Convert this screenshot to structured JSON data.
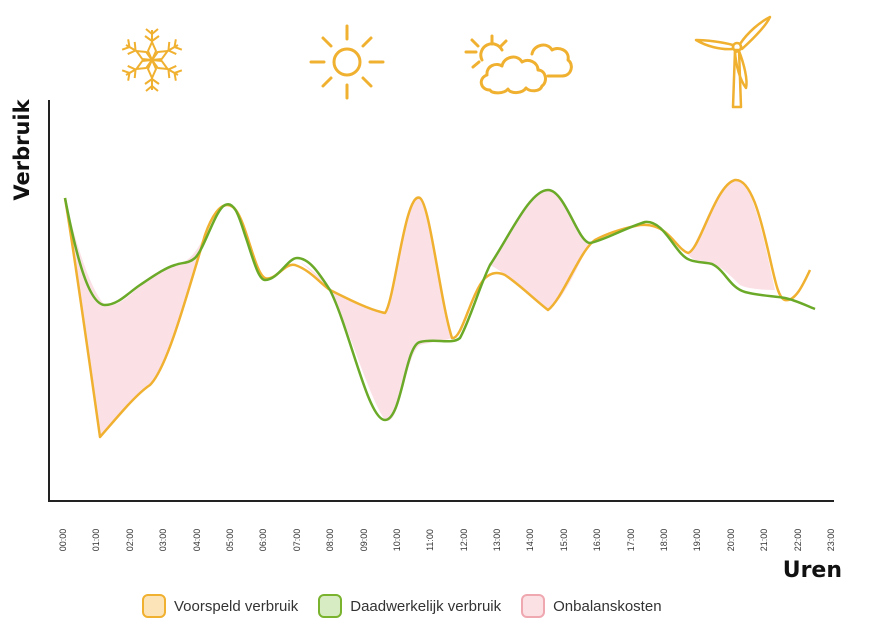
{
  "icons": [
    {
      "name": "snowflake-icon",
      "label": "Koud"
    },
    {
      "name": "sun-icon",
      "label": "Zon"
    },
    {
      "name": "sun-cloud-icon",
      "label": "Half bewolkt"
    },
    {
      "name": "wind-turbine-icon",
      "label": "Wind"
    }
  ],
  "axes": {
    "ylabel": "Verbruik",
    "xlabel": "Uren"
  },
  "legend": [
    {
      "label": "Voorspeld verbruik",
      "fill": "#fde4b8",
      "stroke": "#f0b030"
    },
    {
      "label": "Daadwerkelijk verbruik",
      "fill": "#d8ecc4",
      "stroke": "#7ab32e"
    },
    {
      "label": "Onbalanskosten",
      "fill": "#fbe0e4",
      "stroke": "#f0a8b0"
    }
  ],
  "colors": {
    "forecast": "#f0b030",
    "actual": "#6aaa28",
    "imbalance_fill": "#fbe1e6",
    "axis": "#222222",
    "icon": "#f0b030"
  },
  "chart_data": {
    "type": "line",
    "title": "",
    "xlabel": "Uren",
    "ylabel": "Verbruik",
    "categories": [
      "00:00",
      "01:00",
      "02:00",
      "03:00",
      "04:00",
      "05:00",
      "06:00",
      "07:00",
      "08:00",
      "09:00",
      "10:00",
      "11:00",
      "12:00",
      "13:00",
      "14:00",
      "15:00",
      "16:00",
      "17:00",
      "18:00",
      "19:00",
      "20:00",
      "21:00",
      "22:00",
      "23:00"
    ],
    "ylim": [
      0,
      100
    ],
    "grid": false,
    "legend_position": "bottom",
    "y_ticks_shown": false,
    "series": [
      {
        "name": "Voorspeld verbruik",
        "values": [
          75,
          17,
          24,
          37,
          60,
          73,
          55,
          59,
          53,
          48,
          47,
          76,
          40,
          56,
          53,
          48,
          65,
          68,
          67,
          61,
          80,
          64,
          50,
          57
        ]
      },
      {
        "name": "Daadwerkelijk verbruik",
        "values": [
          75,
          50,
          52,
          59,
          60,
          73,
          55,
          60,
          53,
          37,
          20,
          40,
          40,
          58,
          70,
          74,
          65,
          68,
          68,
          60,
          59,
          52,
          51,
          48
        ]
      }
    ],
    "shaded_region": {
      "name": "Onbalanskosten",
      "between": [
        "Voorspeld verbruik",
        "Daadwerkelijk verbruik"
      ]
    },
    "annotations": [
      "snowflake icon above 01:00-03:00",
      "sun icon above 08:00-09:00",
      "sun behind cloud icon above 12:00-14:00",
      "wind turbine icon above 19:00-20:00"
    ]
  }
}
